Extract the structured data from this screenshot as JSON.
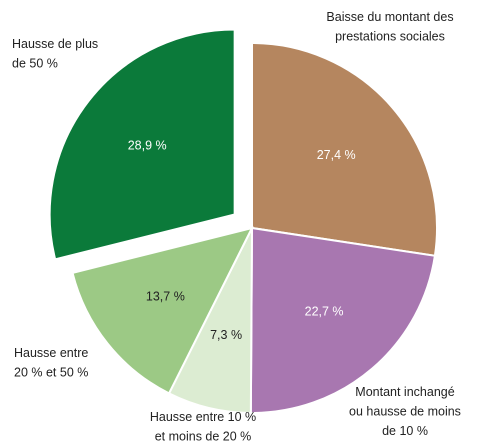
{
  "chart_data": {
    "type": "pie",
    "categories": [
      [
        "Baisse du montant des",
        "prestations sociales"
      ],
      [
        "Montant inchangé",
        "ou hausse de moins",
        "de 10 %"
      ],
      [
        "Hausse entre 10 %",
        "et moins de 20 %"
      ],
      [
        "Hausse entre",
        "20 % et 50 %"
      ],
      [
        "Hausse de plus",
        "de 50 %"
      ]
    ],
    "values": [
      27.4,
      22.7,
      7.3,
      13.7,
      28.9
    ],
    "value_labels": [
      "27,4 %",
      "22,7 %",
      "7,3 %",
      "13,7 %",
      "28,9 %"
    ],
    "colors": [
      "#b5865f",
      "#a877b0",
      "#dcecd2",
      "#9cc985",
      "#0b7a3a"
    ],
    "label_colors": [
      "#ffffff",
      "#ffffff",
      "#222222",
      "#222222",
      "#ffffff"
    ],
    "exploded": [
      false,
      false,
      false,
      false,
      true
    ]
  }
}
